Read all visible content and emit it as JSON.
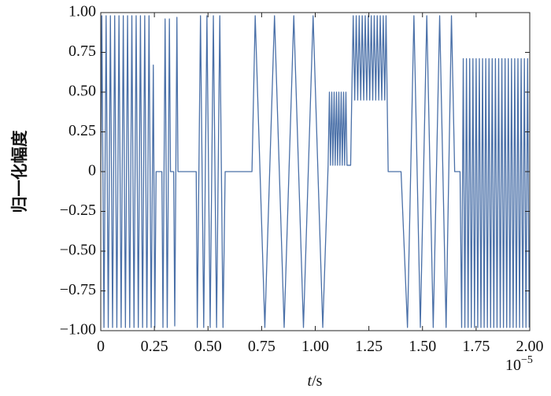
{
  "chart_data": {
    "type": "line",
    "ylabel": "归一化幅度",
    "xlabel": {
      "symbol": "t",
      "unit": "/s"
    },
    "x_offset": {
      "base": "10",
      "exponent": "−5"
    },
    "xlim": [
      0,
      2
    ],
    "ylim": [
      -1,
      1
    ],
    "xticks": [
      0,
      0.25,
      {
        "value": 0.5,
        "label": "0.50"
      },
      0.75,
      {
        "value": 1,
        "label": "1.00"
      },
      1.25,
      {
        "value": 1.5,
        "label": "1.50"
      },
      1.75,
      {
        "value": 2,
        "label": "2.00"
      }
    ],
    "yticks": [
      {
        "value": -1,
        "label": "−1.00"
      },
      {
        "value": -0.75,
        "label": "−0.75"
      },
      {
        "value": -0.5,
        "label": "−0.50"
      },
      {
        "value": -0.25,
        "label": "−0.25"
      },
      0,
      0.25,
      {
        "value": 0.5,
        "label": "0.50"
      },
      0.75,
      {
        "value": 1,
        "label": "1.00"
      }
    ],
    "x": [
      0,
      0.005,
      0.015,
      0.025,
      0.035,
      0.045,
      0.055,
      0.065,
      0.075,
      0.085,
      0.095,
      0.105,
      0.115,
      0.125,
      0.135,
      0.145,
      0.155,
      0.165,
      0.175,
      0.185,
      0.195,
      0.205,
      0.215,
      0.225,
      0.235,
      0.245,
      0.252,
      0.258,
      0.285,
      0.29,
      0.3,
      0.31,
      0.32,
      0.325,
      0.34,
      0.345,
      0.355,
      0.36,
      0.445,
      0.45,
      0.465,
      0.48,
      0.495,
      0.51,
      0.525,
      0.54,
      0.555,
      0.57,
      0.58,
      0.705,
      0.72,
      0.765,
      0.81,
      0.855,
      0.9,
      0.945,
      0.99,
      1.035,
      1.06,
      1.066,
      1.071,
      1.077,
      1.082,
      1.088,
      1.093,
      1.099,
      1.104,
      1.11,
      1.115,
      1.121,
      1.126,
      1.132,
      1.137,
      1.143,
      1.148,
      1.165,
      1.17,
      1.177,
      1.184,
      1.191,
      1.198,
      1.205,
      1.212,
      1.219,
      1.226,
      1.233,
      1.24,
      1.247,
      1.254,
      1.261,
      1.268,
      1.275,
      1.282,
      1.289,
      1.296,
      1.303,
      1.31,
      1.317,
      1.324,
      1.33,
      1.34,
      1.4,
      1.43,
      1.46,
      1.49,
      1.52,
      1.55,
      1.58,
      1.61,
      1.635,
      1.65,
      1.675,
      1.6825,
      1.69,
      1.6975,
      1.705,
      1.7125,
      1.72,
      1.7275,
      1.735,
      1.7425,
      1.75,
      1.7575,
      1.765,
      1.7725,
      1.78,
      1.7875,
      1.795,
      1.8025,
      1.81,
      1.8175,
      1.825,
      1.8325,
      1.84,
      1.8475,
      1.855,
      1.8625,
      1.87,
      1.8775,
      1.885,
      1.8925,
      1.9,
      1.9075,
      1.915,
      1.9225,
      1.93,
      1.9375,
      1.945,
      1.9525,
      1.96,
      1.9675,
      1.975,
      1.9825,
      1.99,
      1.9975
    ],
    "series": [
      {
        "color": "#4a70a8",
        "values": [
          0,
          0.98,
          -0.98,
          0.98,
          -0.98,
          0.98,
          -0.98,
          0.98,
          -0.98,
          0.98,
          -0.98,
          0.98,
          -0.98,
          0.98,
          -0.98,
          0.98,
          -0.98,
          0.98,
          -0.98,
          0.98,
          -0.98,
          0.98,
          -0.98,
          0.98,
          -0.98,
          0.67,
          -0.98,
          0,
          0,
          -0.98,
          0.96,
          -0.98,
          0.96,
          0,
          0,
          -0.97,
          0.97,
          0,
          0,
          -0.98,
          0.98,
          -0.98,
          0.98,
          -0.98,
          0.98,
          -0.98,
          0.98,
          -0.98,
          0,
          0,
          0.98,
          -0.98,
          0.98,
          -0.98,
          0.98,
          -0.98,
          0.98,
          -0.98,
          0.04,
          0.5,
          0.04,
          0.5,
          0.04,
          0.5,
          0.04,
          0.5,
          0.04,
          0.5,
          0.04,
          0.5,
          0.04,
          0.5,
          0.04,
          0.5,
          0.04,
          0.04,
          0.45,
          0.98,
          0.45,
          0.98,
          0.45,
          0.98,
          0.45,
          0.98,
          0.45,
          0.98,
          0.45,
          0.98,
          0.45,
          0.98,
          0.45,
          0.98,
          0.45,
          0.98,
          0.45,
          0.98,
          0.45,
          0.98,
          0.45,
          0.98,
          0,
          0,
          -0.98,
          0.98,
          -0.98,
          0.98,
          -0.98,
          0.98,
          -0.98,
          0.98,
          0,
          0,
          -0.98,
          0.71,
          -0.98,
          0.71,
          -0.98,
          0.71,
          -0.98,
          0.71,
          -0.98,
          0.71,
          -0.98,
          0.71,
          -0.98,
          0.71,
          -0.98,
          0.71,
          -0.98,
          0.71,
          -0.98,
          0.71,
          -0.98,
          0.71,
          -0.98,
          0.71,
          -0.98,
          0.71,
          -0.98,
          0.71,
          -0.98,
          0.71,
          -0.98,
          0.71,
          -0.98,
          0.71,
          -0.98,
          0.71,
          -0.98,
          0.71,
          -0.98,
          0.71,
          -0.98,
          0.71,
          -0.98
        ]
      }
    ]
  }
}
